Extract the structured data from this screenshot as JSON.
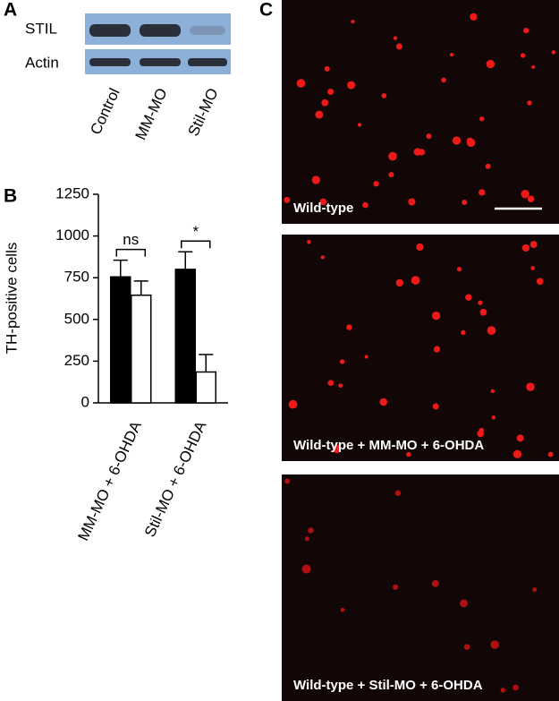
{
  "panels": {
    "a": "A",
    "b": "B",
    "c": "C"
  },
  "blot": {
    "rows": [
      "STIL",
      "Actin"
    ],
    "lanes": [
      "Control",
      "MM-MO",
      "Stil-MO"
    ]
  },
  "chart_data": {
    "type": "bar",
    "y_label": "TH-positive cells",
    "categories": [
      "MM-MO + 6-OHDA",
      "Stil-MO + 6-OHDA"
    ],
    "series": [
      {
        "color": "#000000",
        "values": [
          755,
          800
        ],
        "errors": [
          100,
          105
        ]
      },
      {
        "color": "#ffffff",
        "values": [
          645,
          185
        ],
        "errors": [
          85,
          105
        ]
      }
    ],
    "ylim": [
      0,
      1250
    ],
    "yticks": [
      0,
      250,
      500,
      750,
      1000,
      1250
    ],
    "annotations": [
      "ns",
      "*"
    ]
  },
  "images": {
    "captions": [
      "Wild-type",
      "Wild-type + MM-MO + 6-OHDA",
      "Wild-type + Stil-MO + 6-OHDA"
    ]
  }
}
